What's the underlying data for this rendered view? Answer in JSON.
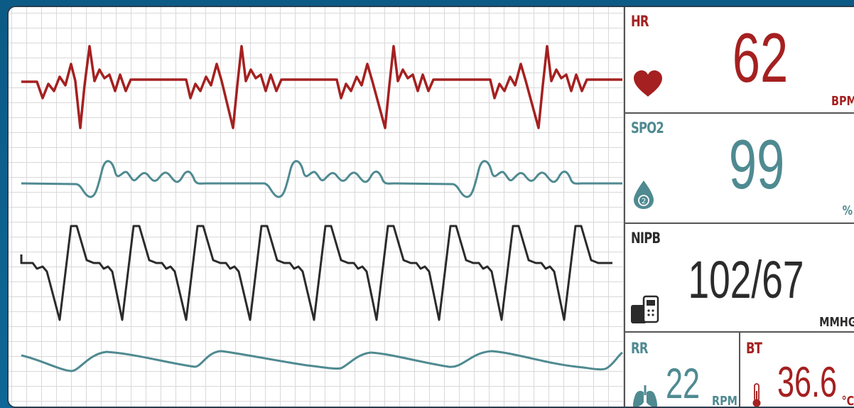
{
  "vitals": {
    "hr": {
      "label": "HR",
      "value": "62",
      "unit": "BPM",
      "icon": "heart-icon",
      "color": "#a52020"
    },
    "spo2": {
      "label": "SPO2",
      "value": "99",
      "unit": "%",
      "icon": "drop-o2-icon",
      "color": "#4f8a91"
    },
    "nibp": {
      "label": "NIPB",
      "value": "102/67",
      "unit": "MMHG",
      "icon": "bp-monitor-icon",
      "color": "#2b2b2b"
    },
    "rr": {
      "label": "RR",
      "value": "22",
      "unit": "RPM",
      "icon": "lungs-icon",
      "color": "#4f8a91"
    },
    "bt": {
      "label": "BT",
      "value": "36.6",
      "unit": "°C",
      "icon": "thermometer-icon",
      "color": "#a52020"
    }
  },
  "waveforms": [
    {
      "name": "ecg",
      "color": "#a52020"
    },
    {
      "name": "pleth",
      "color": "#4f8a91"
    },
    {
      "name": "arterial-pressure",
      "color": "#2b2b2b"
    },
    {
      "name": "respiration",
      "color": "#4f8a91"
    }
  ]
}
